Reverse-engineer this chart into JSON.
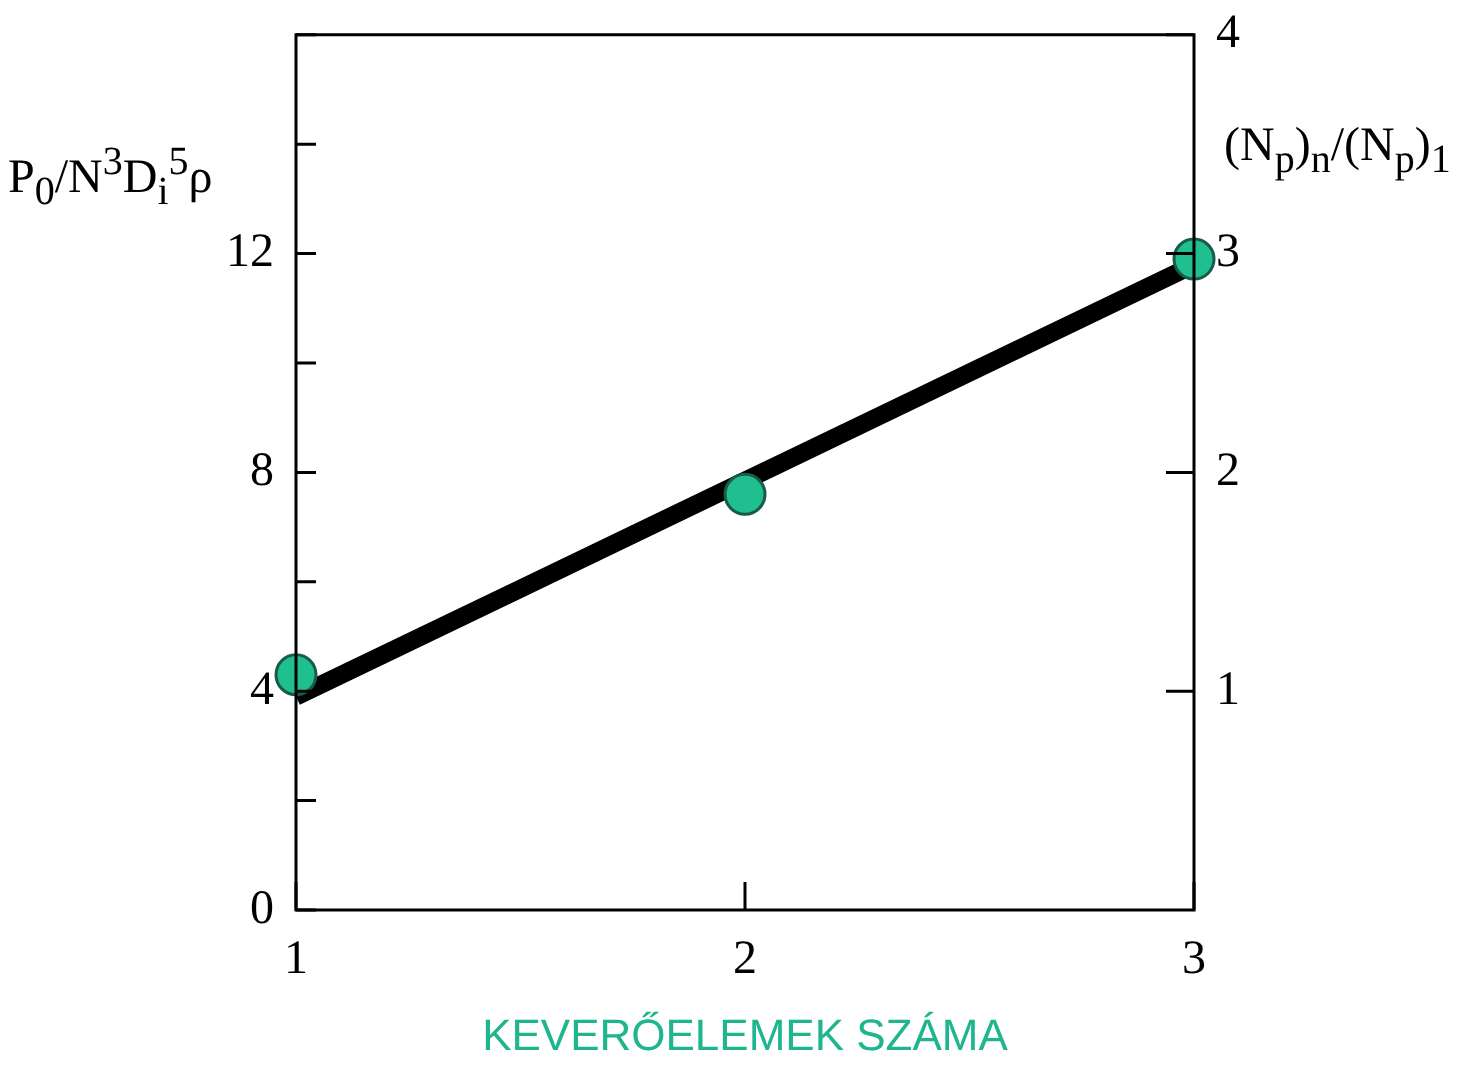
{
  "chart_data": {
    "type": "line",
    "xlabel": "KEVERŐELEMEK SZÁMA",
    "ylabel": "P$_{0}$/N$^{3}$D$_{i}$$^{5}$ρ",
    "y2label": "(N$_{p}$)$_{n}$/(N$_{p}$)$_{1}$",
    "xlim": [
      1,
      3
    ],
    "xticks": [
      1,
      2,
      3
    ],
    "ylim": [
      0,
      16
    ],
    "yticks": [
      0,
      {
        "value": 2,
        "label": null
      },
      4,
      {
        "value": 6,
        "label": null
      },
      8,
      {
        "value": 10,
        "label": null
      },
      12,
      {
        "value": 14,
        "label": null
      },
      {
        "value": 16,
        "label": null
      }
    ],
    "y2lim": [
      0,
      4
    ],
    "y2ticks": [
      1,
      2,
      3,
      4
    ],
    "legend": false,
    "series": [
      {
        "type": "line",
        "x": [
          1,
          3
        ],
        "values": [
          3.9,
          11.8
        ],
        "color": "#000000",
        "marker": "none"
      },
      {
        "type": "scatter",
        "x": [
          1,
          2,
          3
        ],
        "values": [
          4.3,
          7.6,
          11.9
        ],
        "color": "#1fbf8f",
        "marker": "circle"
      }
    ]
  }
}
